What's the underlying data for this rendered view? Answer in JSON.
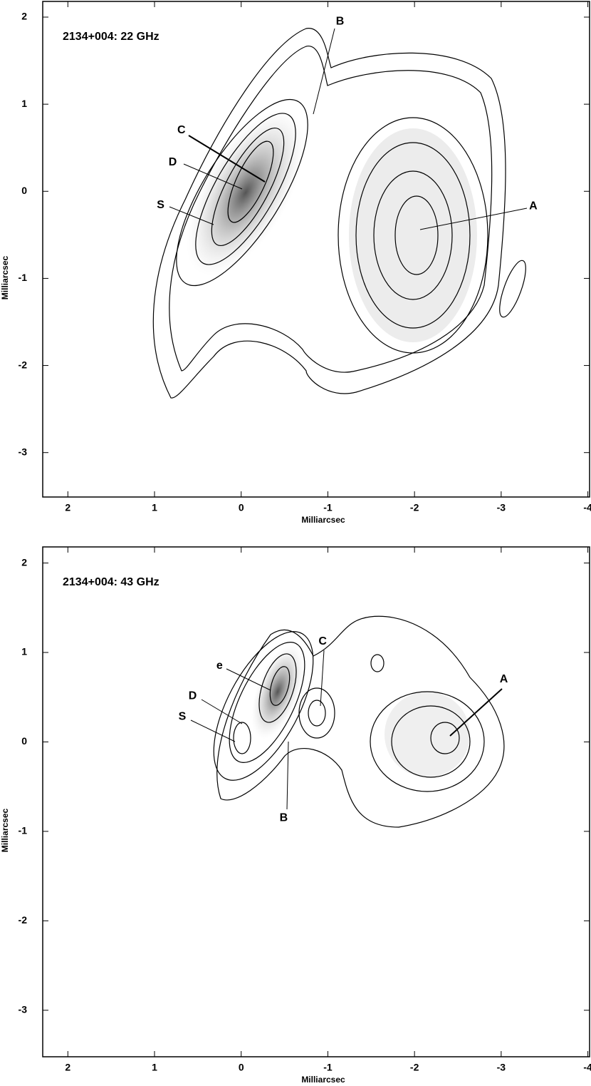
{
  "chart_data": [
    {
      "type": "contour",
      "title": "2134+004: 22 GHz",
      "xlabel": "Milliarcsec",
      "ylabel": "Milliarcsec",
      "xlim": [
        2.29,
        -4.02
      ],
      "ylim": [
        -3.51,
        2.18
      ],
      "xticks": [
        2,
        1,
        0,
        -1,
        -2,
        -3,
        -4
      ],
      "yticks": [
        2,
        1,
        0,
        -1,
        -2,
        -3
      ],
      "annotations": [
        {
          "text": "B",
          "x": -1.14,
          "y": 1.95
        },
        {
          "text": "C",
          "x": 0.69,
          "y": 0.7
        },
        {
          "text": "D",
          "x": 0.79,
          "y": 0.33
        },
        {
          "text": "S",
          "x": 0.93,
          "y": -0.16
        },
        {
          "text": "A",
          "x": -3.37,
          "y": -0.17
        }
      ]
    },
    {
      "type": "contour",
      "title": "2134+004: 43 GHz",
      "xlabel": "Milliarcsec",
      "ylabel": "Milliarcsec",
      "xlim": [
        2.29,
        -4.02
      ],
      "ylim": [
        -3.52,
        2.18
      ],
      "xticks": [
        2,
        1,
        0,
        -1,
        -2,
        -3,
        -4
      ],
      "yticks": [
        2,
        1,
        0,
        -1,
        -2,
        -3
      ],
      "annotations": [
        {
          "text": "C",
          "x": -0.94,
          "y": 1.12
        },
        {
          "text": "e",
          "x": 0.25,
          "y": 0.85
        },
        {
          "text": "D",
          "x": 0.56,
          "y": 0.51
        },
        {
          "text": "S",
          "x": 0.68,
          "y": 0.28
        },
        {
          "text": "B",
          "x": -0.49,
          "y": -0.85
        },
        {
          "text": "A",
          "x": -3.03,
          "y": 0.7
        }
      ]
    }
  ]
}
